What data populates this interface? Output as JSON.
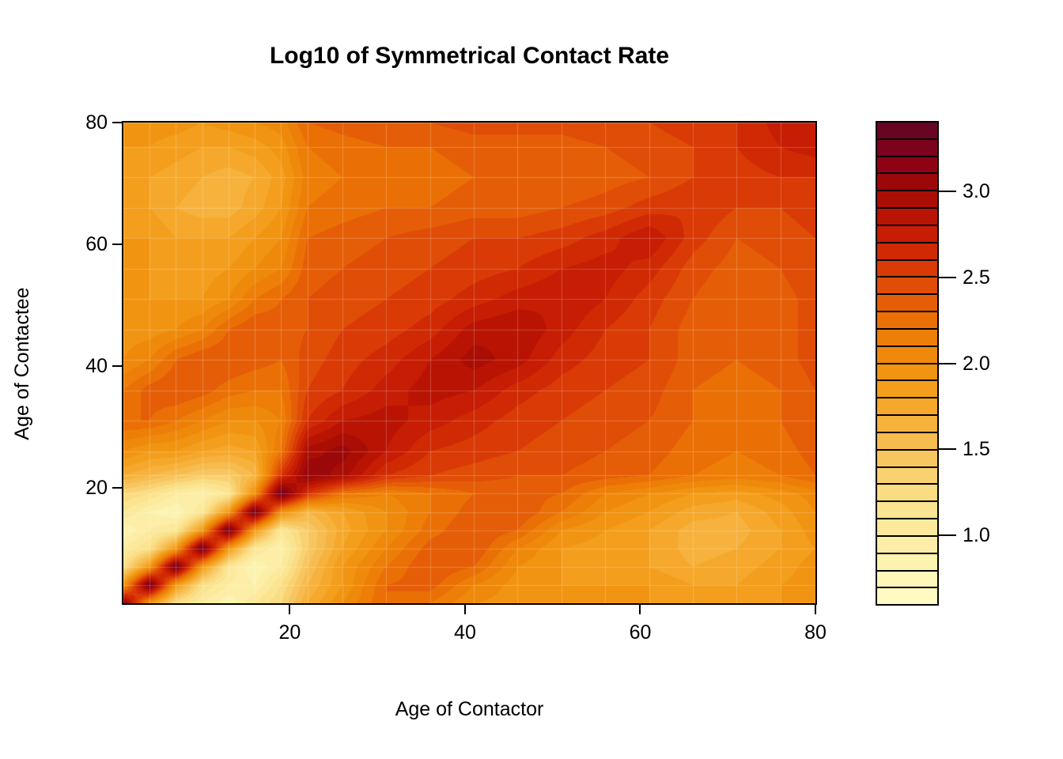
{
  "chart_data": {
    "type": "heatmap",
    "title": "Log10 of Symmetrical Contact Rate",
    "xlabel": "Age of Contactor",
    "ylabel": "Age of Contactee",
    "xlim": [
      1,
      80
    ],
    "ylim": [
      1,
      80
    ],
    "x_ticks": [
      20,
      40,
      60,
      80
    ],
    "x_tick_labels": [
      "20",
      "40",
      "60",
      "80"
    ],
    "y_ticks": [
      20,
      40,
      60,
      80
    ],
    "y_tick_labels": [
      "20",
      "40",
      "60",
      "80"
    ],
    "grid": "faint-white-mesh",
    "legend_position": "right",
    "zlim": [
      0.6,
      3.4
    ],
    "band_step": 0.1,
    "legend_ticks": [
      1.0,
      1.5,
      2.0,
      2.5,
      3.0
    ],
    "legend_tick_labels": [
      "1.0",
      "1.5",
      "2.0",
      "2.5",
      "3.0"
    ],
    "color_stops": [
      [
        0.6,
        "#FFFCC6"
      ],
      [
        0.9,
        "#FDF1AC"
      ],
      [
        1.2,
        "#FAE18B"
      ],
      [
        1.5,
        "#F8C158"
      ],
      [
        1.8,
        "#F4A322"
      ],
      [
        2.0,
        "#F08F0D"
      ],
      [
        2.2,
        "#EC7806"
      ],
      [
        2.4,
        "#E35607"
      ],
      [
        2.6,
        "#D63106"
      ],
      [
        2.8,
        "#C01703"
      ],
      [
        3.0,
        "#A30A04"
      ],
      [
        3.1,
        "#95040E"
      ],
      [
        3.2,
        "#88031A"
      ],
      [
        3.3,
        "#730222"
      ],
      [
        3.4,
        "#5E0722"
      ]
    ],
    "ages": [
      1,
      4,
      7,
      10,
      13,
      16,
      19,
      22,
      26,
      31,
      36,
      41,
      46,
      51,
      56,
      61,
      66,
      71,
      76,
      80
    ],
    "z_log10_contact_rate": [
      [
        3.2,
        1.9,
        1.2,
        1.0,
        0.8,
        1.1,
        1.3,
        1.7,
        2.0,
        2.3,
        2.2,
        2.0,
        1.95,
        1.9,
        1.9,
        1.9,
        1.85,
        1.85,
        1.9,
        1.95
      ],
      [
        1.9,
        3.35,
        1.9,
        1.2,
        1.0,
        0.9,
        1.2,
        1.6,
        1.9,
        2.3,
        2.35,
        2.1,
        1.95,
        1.9,
        1.9,
        1.9,
        1.8,
        1.8,
        1.9,
        1.95
      ],
      [
        1.2,
        1.9,
        3.35,
        1.9,
        1.1,
        0.8,
        1.0,
        1.5,
        1.9,
        2.2,
        2.4,
        2.3,
        2.0,
        1.9,
        1.85,
        1.8,
        1.7,
        1.75,
        1.85,
        1.95
      ],
      [
        1.0,
        1.2,
        1.9,
        3.35,
        1.9,
        1.1,
        0.9,
        1.4,
        1.8,
        2.1,
        2.35,
        2.4,
        2.1,
        1.9,
        1.85,
        1.8,
        1.65,
        1.7,
        1.8,
        1.9
      ],
      [
        0.8,
        1.0,
        1.1,
        1.9,
        3.35,
        1.9,
        1.1,
        1.4,
        1.75,
        2.0,
        2.25,
        2.4,
        2.3,
        2.0,
        1.9,
        1.8,
        1.65,
        1.65,
        1.8,
        1.95
      ],
      [
        1.1,
        0.9,
        0.8,
        1.1,
        1.9,
        3.35,
        2.0,
        1.6,
        1.8,
        2.0,
        2.2,
        2.35,
        2.4,
        2.2,
        2.0,
        1.9,
        1.75,
        1.7,
        1.85,
        2.0
      ],
      [
        1.3,
        1.2,
        1.0,
        0.9,
        1.1,
        2.0,
        3.35,
        2.6,
        2.2,
        2.1,
        2.2,
        2.3,
        2.35,
        2.3,
        2.1,
        2.0,
        1.9,
        1.85,
        1.95,
        2.05
      ],
      [
        1.7,
        1.6,
        1.5,
        1.4,
        1.4,
        1.6,
        2.6,
        3.1,
        2.95,
        2.6,
        2.5,
        2.45,
        2.4,
        2.4,
        2.35,
        2.3,
        2.2,
        2.15,
        2.2,
        2.3
      ],
      [
        2.0,
        1.9,
        1.9,
        1.8,
        1.75,
        1.8,
        2.2,
        2.95,
        3.05,
        2.8,
        2.6,
        2.55,
        2.5,
        2.45,
        2.4,
        2.35,
        2.25,
        2.2,
        2.25,
        2.35
      ],
      [
        2.3,
        2.3,
        2.2,
        2.1,
        2.0,
        2.0,
        2.1,
        2.6,
        2.8,
        2.85,
        2.75,
        2.65,
        2.55,
        2.5,
        2.45,
        2.4,
        2.3,
        2.25,
        2.3,
        2.4
      ],
      [
        2.2,
        2.35,
        2.4,
        2.35,
        2.25,
        2.2,
        2.2,
        2.5,
        2.6,
        2.75,
        2.85,
        2.8,
        2.65,
        2.55,
        2.5,
        2.45,
        2.3,
        2.25,
        2.3,
        2.4
      ],
      [
        2.0,
        2.1,
        2.3,
        2.4,
        2.4,
        2.35,
        2.3,
        2.45,
        2.55,
        2.65,
        2.8,
        2.95,
        2.85,
        2.65,
        2.55,
        2.5,
        2.35,
        2.3,
        2.35,
        2.45
      ],
      [
        1.95,
        1.95,
        2.0,
        2.1,
        2.3,
        2.4,
        2.35,
        2.4,
        2.5,
        2.55,
        2.65,
        2.85,
        2.9,
        2.75,
        2.6,
        2.5,
        2.35,
        2.3,
        2.35,
        2.45
      ],
      [
        1.9,
        1.9,
        1.9,
        1.9,
        2.0,
        2.2,
        2.3,
        2.4,
        2.45,
        2.5,
        2.55,
        2.65,
        2.75,
        2.8,
        2.7,
        2.55,
        2.4,
        2.3,
        2.35,
        2.45
      ],
      [
        1.9,
        1.9,
        1.85,
        1.85,
        1.9,
        2.0,
        2.1,
        2.35,
        2.4,
        2.45,
        2.5,
        2.55,
        2.6,
        2.7,
        2.75,
        2.65,
        2.45,
        2.35,
        2.4,
        2.5
      ],
      [
        1.9,
        1.9,
        1.8,
        1.8,
        1.8,
        1.9,
        2.0,
        2.3,
        2.35,
        2.4,
        2.45,
        2.5,
        2.5,
        2.55,
        2.65,
        2.8,
        2.55,
        2.4,
        2.45,
        2.5
      ],
      [
        1.85,
        1.8,
        1.7,
        1.65,
        1.65,
        1.75,
        1.9,
        2.2,
        2.25,
        2.3,
        2.3,
        2.35,
        2.35,
        2.4,
        2.45,
        2.55,
        2.6,
        2.5,
        2.5,
        2.55
      ],
      [
        1.85,
        1.8,
        1.75,
        1.7,
        1.65,
        1.7,
        1.85,
        2.15,
        2.2,
        2.25,
        2.25,
        2.3,
        2.3,
        2.3,
        2.35,
        2.4,
        2.5,
        2.55,
        2.6,
        2.6
      ],
      [
        1.9,
        1.9,
        1.85,
        1.8,
        1.8,
        1.85,
        1.95,
        2.2,
        2.25,
        2.3,
        2.3,
        2.35,
        2.35,
        2.35,
        2.4,
        2.45,
        2.5,
        2.6,
        2.7,
        2.75
      ],
      [
        1.95,
        1.95,
        1.95,
        1.9,
        1.95,
        2.0,
        2.05,
        2.3,
        2.35,
        2.4,
        2.4,
        2.45,
        2.45,
        2.45,
        2.5,
        2.5,
        2.55,
        2.6,
        2.75,
        2.8
      ]
    ]
  }
}
